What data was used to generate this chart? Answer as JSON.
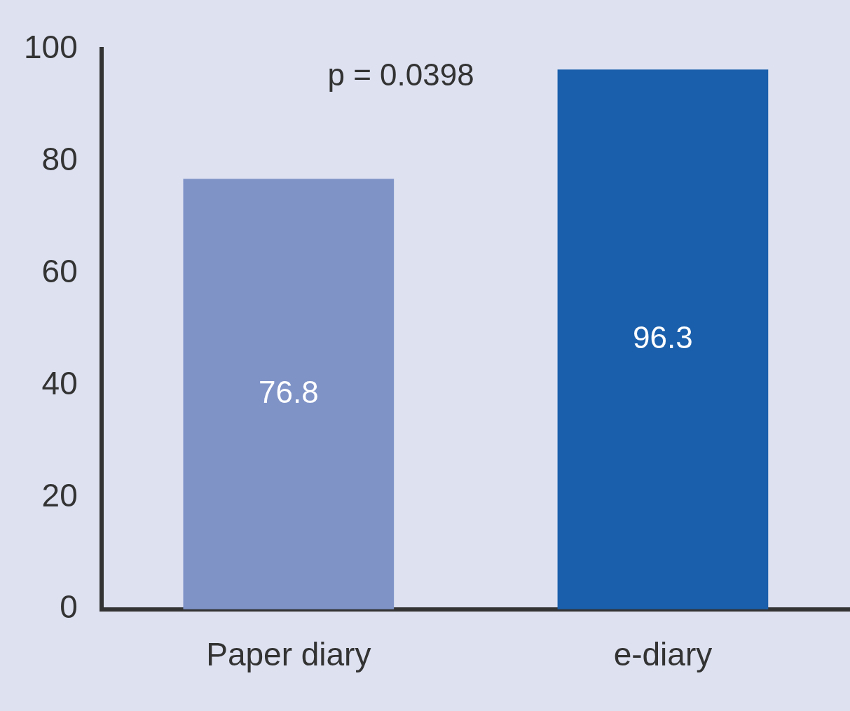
{
  "chart_data": {
    "type": "bar",
    "categories": [
      "Paper diary",
      "e-diary"
    ],
    "values": [
      76.8,
      96.3
    ],
    "colors": [
      "#7f93c7",
      "#1a5fab"
    ],
    "ylim": [
      0,
      100
    ],
    "yticks": [
      0,
      20,
      40,
      60,
      80,
      100
    ],
    "data_labels": true,
    "annotations": [
      "p = 0.0398"
    ]
  }
}
